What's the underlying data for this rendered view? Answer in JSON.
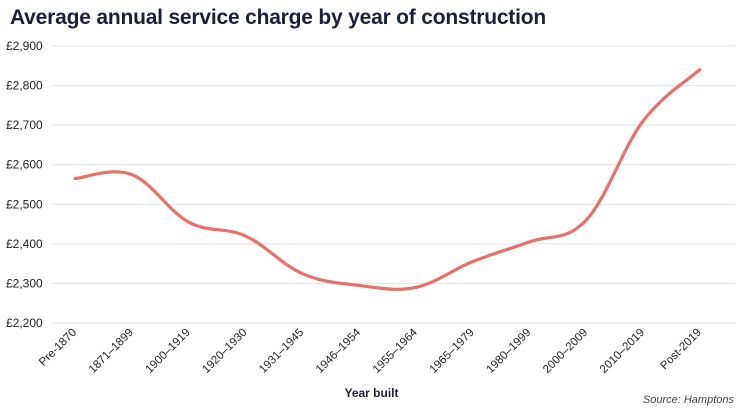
{
  "chart_data": {
    "type": "line",
    "title": "Average annual service charge by year of construction",
    "xlabel": "Year built",
    "ylabel": "",
    "source": "Source: Hamptons",
    "categories": [
      "Pre-1870",
      "1871–1899",
      "1900–1919",
      "1920–1930",
      "1931–1945",
      "1946–1954",
      "1955–1964",
      "1965–1979",
      "1980–1999",
      "2000–2009",
      "2010–2019",
      "Post-2019"
    ],
    "series": [
      {
        "values": [
          2565,
          2575,
          2455,
          2420,
          2325,
          2295,
          2290,
          2355,
          2405,
          2460,
          2710,
          2840
        ]
      }
    ],
    "y_ticks": [
      "£2,200",
      "£2,300",
      "£2,400",
      "£2,500",
      "£2,600",
      "£2,700",
      "£2,800",
      "£2,900"
    ],
    "ylim": [
      2200,
      2900
    ],
    "grid": true,
    "colors": {
      "line": "#e8706a",
      "grid": "#e3e3e3",
      "title": "#1b1f3b"
    }
  }
}
